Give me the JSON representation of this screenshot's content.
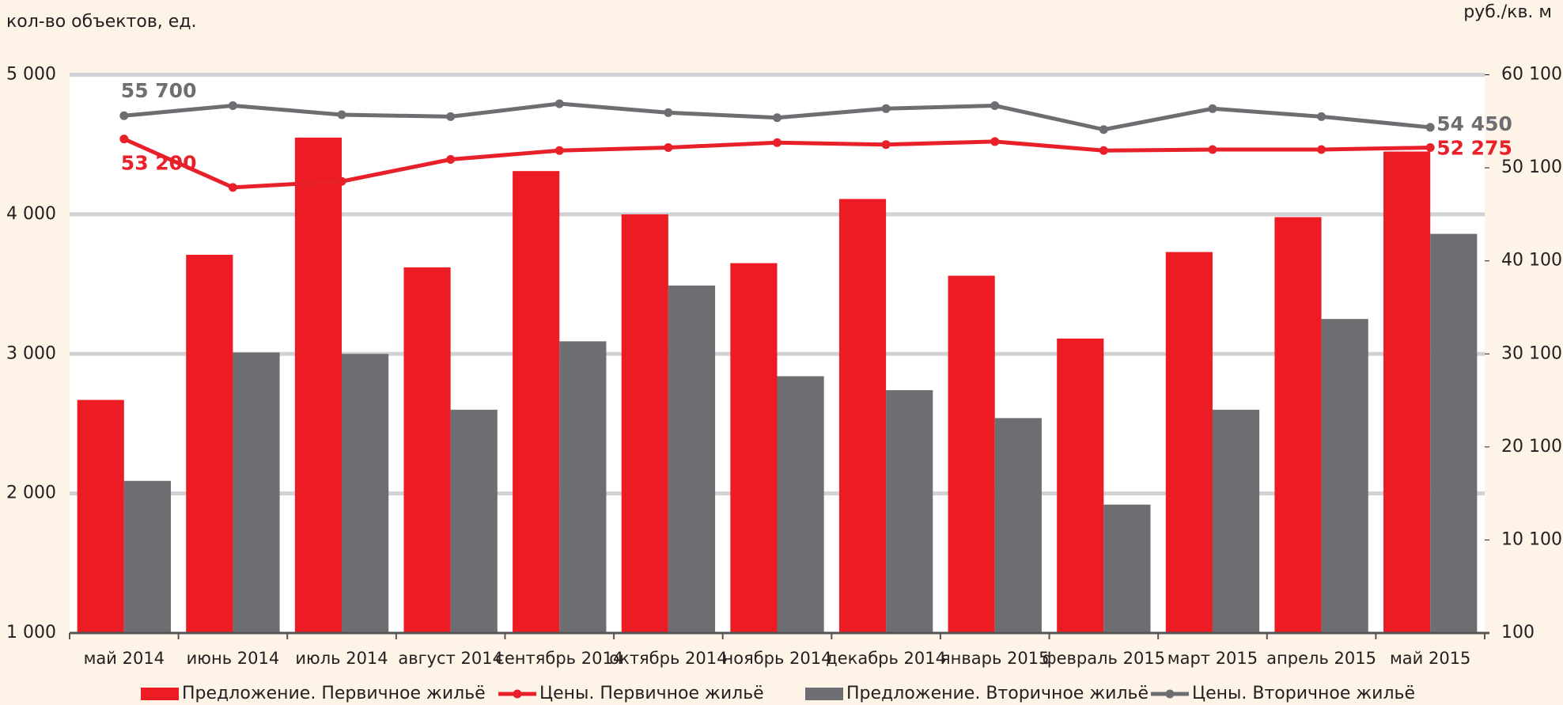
{
  "chart_data": {
    "type": "bar",
    "y_label": "кол-во объектов, ед.",
    "y2_label": "руб./кв. м",
    "categories": [
      "май 2014",
      "июнь 2014",
      "июль 2014",
      "август 2014",
      "сентябрь 2014",
      "октябрь 2014",
      "ноябрь 2014",
      "декабрь 2014",
      "январь 2015",
      "февраль 2015",
      "март 2015",
      "апрель 2015",
      "май 2015"
    ],
    "series": [
      {
        "name": "Предложение. Первичное жильё",
        "type": "bar",
        "color": "#ed1c24",
        "values": [
          2670,
          3710,
          4550,
          3620,
          4310,
          4000,
          3650,
          4110,
          3560,
          3110,
          3730,
          3980,
          4450
        ]
      },
      {
        "name": "Цены. Первичное жильё",
        "type": "line",
        "axis": "y2",
        "color": "#e8202a",
        "values": [
          53200,
          47990,
          48640,
          51000,
          51960,
          52280,
          52810,
          52600,
          52920,
          51960,
          52060,
          52060,
          52275
        ],
        "value_labels": [
          "53 200",
          null,
          null,
          null,
          null,
          null,
          null,
          null,
          null,
          null,
          null,
          null,
          "52 275"
        ]
      },
      {
        "name": "Предложение. Вторичное жильё",
        "type": "bar",
        "color": "#6d6e71",
        "values": [
          2090,
          3010,
          3000,
          2600,
          3090,
          3490,
          2840,
          2740,
          2540,
          1920,
          2600,
          3250,
          3860
        ]
      },
      {
        "name": "Цены. Вторичное жильё",
        "type": "line",
        "axis": "y2",
        "color": "#6d6e71",
        "values": [
          55700,
          56780,
          55810,
          55600,
          56990,
          56030,
          55490,
          56460,
          56780,
          54210,
          56460,
          55600,
          54450
        ],
        "value_labels": [
          "55 700",
          null,
          null,
          null,
          null,
          null,
          null,
          null,
          null,
          null,
          null,
          null,
          "54 450"
        ]
      }
    ],
    "ylim": [
      1000,
      5000
    ],
    "yticks": [
      {
        "value": 1000,
        "label": "1 000"
      },
      {
        "value": 2000,
        "label": "2 000"
      },
      {
        "value": 3000,
        "label": "3 000"
      },
      {
        "value": 4000,
        "label": "4 000"
      },
      {
        "value": 5000,
        "label": "5 000"
      }
    ],
    "y2lim": [
      100,
      60100
    ],
    "y2ticks": [
      100,
      {
        "value": 10100,
        "label": "10 100"
      },
      {
        "value": 20100,
        "label": "20 100"
      },
      {
        "value": 30100,
        "label": "30 100"
      },
      {
        "value": 40100,
        "label": "40 100"
      },
      {
        "value": 50100,
        "label": "50 100"
      },
      {
        "value": 60100,
        "label": "60 100"
      }
    ],
    "grid": true,
    "legend": "bottom"
  }
}
